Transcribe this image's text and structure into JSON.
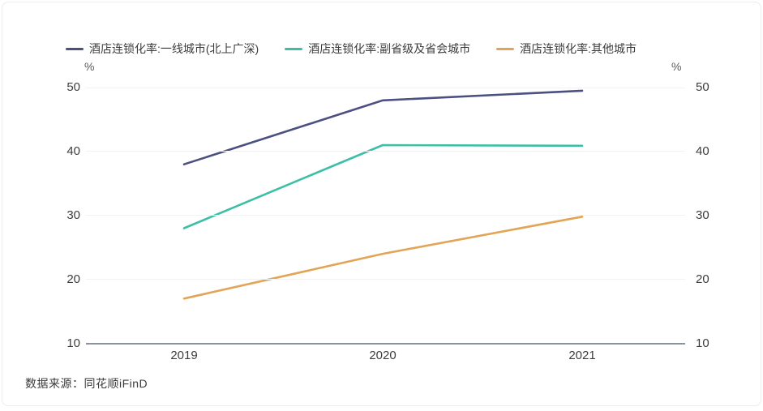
{
  "card": {
    "source_label": "数据来源：同花顺iFinD"
  },
  "chart_data": {
    "type": "line",
    "title": "",
    "categories": [
      "2019",
      "2020",
      "2021"
    ],
    "series": [
      {
        "name": "酒店连锁化率:一线城市(北上广深)",
        "color": "#4b5080",
        "values": [
          38,
          48,
          49.5
        ]
      },
      {
        "name": "酒店连锁化率:副省级及省会城市",
        "color": "#3dbfa7",
        "values": [
          28,
          41,
          40.9
        ]
      },
      {
        "name": "酒店连锁化率:其他城市",
        "color": "#e2a455",
        "values": [
          17,
          24,
          29.8
        ]
      }
    ],
    "unit": "%",
    "xlabel": "",
    "ylabel": "%",
    "y_ticks": [
      10,
      20,
      30,
      40,
      50
    ],
    "ylim": [
      10,
      50
    ],
    "legend_position": "top",
    "grid": true,
    "dual_axis": true,
    "axis_color": "#8b91a0",
    "grid_color": "#f2f2f4"
  }
}
